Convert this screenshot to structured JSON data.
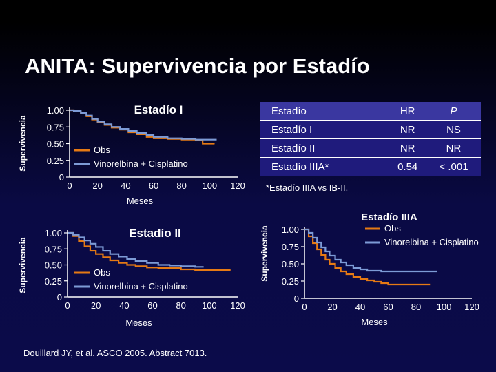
{
  "title": "ANITA: Supervivencia por Estadío",
  "reference": "Douillard JY, et al. ASCO 2005. Abstract 7013.",
  "colors": {
    "obs": "#e67a14",
    "vinorelbina": "#7d9bd6"
  },
  "table": {
    "headers": [
      "Estadío",
      "HR",
      "P"
    ],
    "rows": [
      [
        "Estadío I",
        "NR",
        "NS"
      ],
      [
        "Estadío II",
        "NR",
        "NR"
      ],
      [
        "Estadío IIIA*",
        "0.54",
        "< .001"
      ]
    ],
    "footnote": "*Estadío IIIA vs IB-II."
  },
  "chart_data": [
    {
      "type": "line",
      "title": "Estadío I",
      "xlabel": "Meses",
      "ylabel": "Supervivencia",
      "xlim": [
        0,
        120
      ],
      "ylim": [
        0,
        1
      ],
      "xticks": [
        "0",
        "20",
        "40",
        "60",
        "80",
        "100",
        "120"
      ],
      "yticks": [
        "0",
        "0.25",
        "0.50",
        "0.75",
        "1.00"
      ],
      "legend": [
        "Obs",
        "Vinorelbina + Cisplatino"
      ],
      "series": [
        {
          "name": "Obs",
          "x": [
            0,
            3,
            8,
            12,
            16,
            20,
            25,
            30,
            36,
            42,
            48,
            55,
            60,
            70,
            80,
            90,
            95,
            103
          ],
          "y": [
            1.0,
            0.98,
            0.95,
            0.91,
            0.86,
            0.82,
            0.78,
            0.74,
            0.71,
            0.67,
            0.64,
            0.6,
            0.58,
            0.57,
            0.56,
            0.55,
            0.5,
            0.49
          ]
        },
        {
          "name": "Vinorelbina + Cisplatino",
          "x": [
            0,
            3,
            8,
            12,
            16,
            20,
            25,
            30,
            36,
            42,
            48,
            55,
            60,
            70,
            80,
            90,
            100,
            105
          ],
          "y": [
            1.0,
            0.99,
            0.96,
            0.92,
            0.87,
            0.83,
            0.79,
            0.75,
            0.72,
            0.69,
            0.66,
            0.63,
            0.6,
            0.58,
            0.57,
            0.56,
            0.56,
            0.56
          ]
        }
      ]
    },
    {
      "type": "line",
      "title": "Estadío II",
      "xlabel": "Meses",
      "ylabel": "Supervivencia",
      "xlim": [
        0,
        120
      ],
      "ylim": [
        0,
        1
      ],
      "xticks": [
        "0",
        "20",
        "40",
        "60",
        "80",
        "100",
        "120"
      ],
      "yticks": [
        "0",
        "0.25",
        "0.50",
        "0.75",
        "1.00"
      ],
      "legend": [
        "Obs",
        "Vinorelbina + Cisplatino"
      ],
      "series": [
        {
          "name": "Obs",
          "x": [
            0,
            4,
            8,
            12,
            16,
            20,
            25,
            30,
            36,
            42,
            48,
            56,
            64,
            72,
            80,
            90,
            100,
            110,
            115
          ],
          "y": [
            1.0,
            0.95,
            0.87,
            0.79,
            0.72,
            0.67,
            0.62,
            0.57,
            0.53,
            0.5,
            0.48,
            0.46,
            0.45,
            0.45,
            0.43,
            0.42,
            0.42,
            0.42,
            0.42
          ]
        },
        {
          "name": "Vinorelbina + Cisplatino",
          "x": [
            0,
            4,
            8,
            12,
            16,
            20,
            25,
            30,
            36,
            42,
            48,
            56,
            64,
            72,
            80,
            90,
            96
          ],
          "y": [
            1.0,
            0.97,
            0.93,
            0.88,
            0.83,
            0.78,
            0.72,
            0.67,
            0.63,
            0.59,
            0.56,
            0.53,
            0.5,
            0.49,
            0.48,
            0.47,
            0.47
          ]
        }
      ]
    },
    {
      "type": "line",
      "title": "Estadío IIIA",
      "xlabel": "Meses",
      "ylabel": "Supervivencia",
      "xlim": [
        0,
        120
      ],
      "ylim": [
        0,
        1
      ],
      "xticks": [
        "0",
        "20",
        "40",
        "60",
        "80",
        "100",
        "120"
      ],
      "yticks": [
        "0",
        "0.25",
        "0.50",
        "0.75",
        "1.00"
      ],
      "legend": [
        "Obs",
        "Vinorelbina + Cisplatino"
      ],
      "series": [
        {
          "name": "Obs",
          "x": [
            0,
            3,
            6,
            9,
            12,
            15,
            18,
            22,
            26,
            30,
            35,
            40,
            45,
            50,
            55,
            60,
            70,
            80,
            90
          ],
          "y": [
            1.0,
            0.9,
            0.8,
            0.71,
            0.63,
            0.56,
            0.5,
            0.44,
            0.39,
            0.35,
            0.31,
            0.28,
            0.26,
            0.24,
            0.22,
            0.2,
            0.2,
            0.2,
            0.2
          ]
        },
        {
          "name": "Vinorelbina + Cisplatino",
          "x": [
            0,
            3,
            6,
            9,
            12,
            15,
            18,
            22,
            26,
            30,
            35,
            40,
            45,
            50,
            55,
            60,
            70,
            80,
            90,
            95
          ],
          "y": [
            1.0,
            0.95,
            0.88,
            0.81,
            0.74,
            0.68,
            0.62,
            0.56,
            0.52,
            0.48,
            0.44,
            0.42,
            0.4,
            0.4,
            0.39,
            0.39,
            0.39,
            0.39,
            0.39,
            0.39
          ]
        }
      ]
    }
  ]
}
